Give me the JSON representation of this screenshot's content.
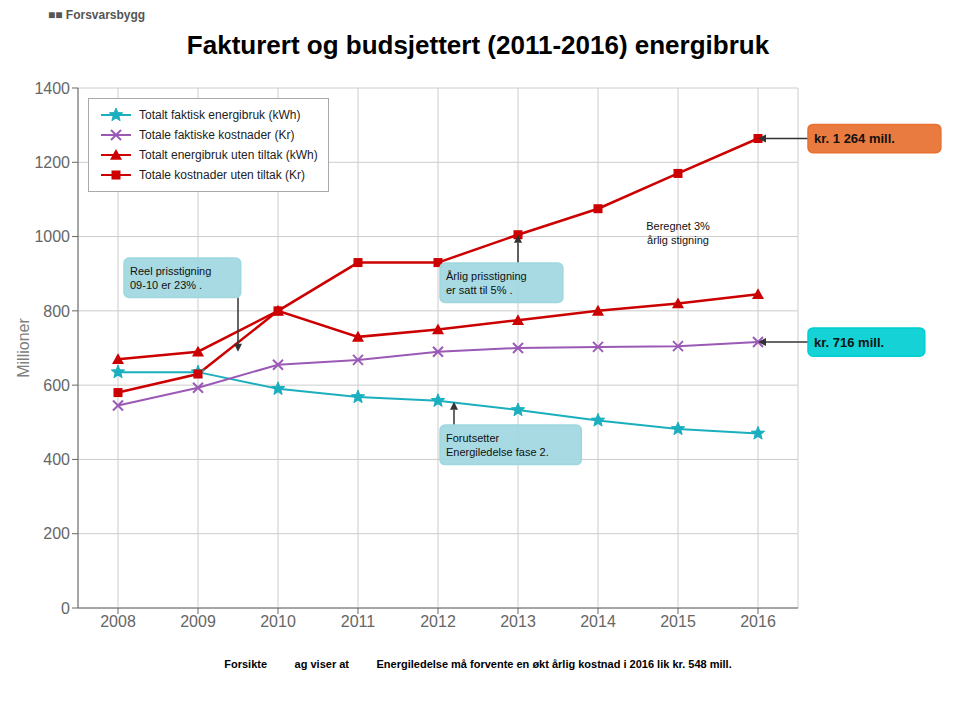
{
  "chart_data": {
    "type": "line",
    "title": "Fakturert og budsjettert (2011-2016) energibruk",
    "y_label": "Millioner",
    "x": [
      2008,
      2009,
      2010,
      2011,
      2012,
      2013,
      2014,
      2015,
      2016
    ],
    "xlim": [
      2007.5,
      2016.5
    ],
    "xticks": [
      2008,
      2009,
      2010,
      2011,
      2012,
      2013,
      2014,
      2015,
      2016
    ],
    "ylim": [
      0,
      1400
    ],
    "yticks": [
      0,
      200,
      400,
      600,
      800,
      1000,
      1200,
      1400
    ],
    "grid": true,
    "legend": "upper left",
    "series": [
      {
        "name": "Totalt faktisk energibruk (kWh)",
        "color": "#1AAFBE",
        "marker": "star",
        "values": [
          635,
          635,
          590,
          568,
          558,
          533,
          505,
          482,
          470
        ]
      },
      {
        "name": "Totale faktiske kostnader (Kr)",
        "color": "#9B59B6",
        "marker": "x",
        "values": [
          545,
          593,
          655,
          668,
          690,
          700,
          703,
          705,
          716
        ]
      },
      {
        "name": "Totalt energibruk uten tiltak (kWh)",
        "color": "#CC0000",
        "marker": "triangle",
        "values": [
          670,
          690,
          800,
          730,
          750,
          775,
          800,
          820,
          845
        ]
      },
      {
        "name": "Totale kostnader uten tiltak (Kr)",
        "color": "#CC0000",
        "marker": "square",
        "values": [
          580,
          630,
          800,
          930,
          930,
          1005,
          1075,
          1170,
          1264
        ]
      }
    ],
    "annotations": [
      {
        "text": "Reel prisstigning\n09-10 er 23% .",
        "x": 2009.5,
        "y": 690,
        "color": "#9FD7DF"
      },
      {
        "text": "Årlig prisstigning\ner satt til 5% .",
        "x": 2013.0,
        "y": 1005,
        "color": "#9FD7DF"
      },
      {
        "text": "Beregnet 3%\nårlig stigning",
        "x": 2015.0,
        "y": 1010
      },
      {
        "text": "Forutsetter\nEnergiledelse fase 2.",
        "x": 2012.2,
        "y": 555,
        "color": "#9FD7DF"
      },
      {
        "text": "kr. 1 264 mill.",
        "x": 2016,
        "y": 1264,
        "color": "#E87030"
      },
      {
        "text": "kr. 716 mill.",
        "x": 2016,
        "y": 716,
        "color": "#00CED1"
      },
      {
        "text": "Forsikte         ag viser at         Energiledelse må forvente en økt årlig kostnad i 2016 lik kr. 548 mill."
      },
      {
        "text": "■■ Forsvarsbygg"
      }
    ]
  }
}
